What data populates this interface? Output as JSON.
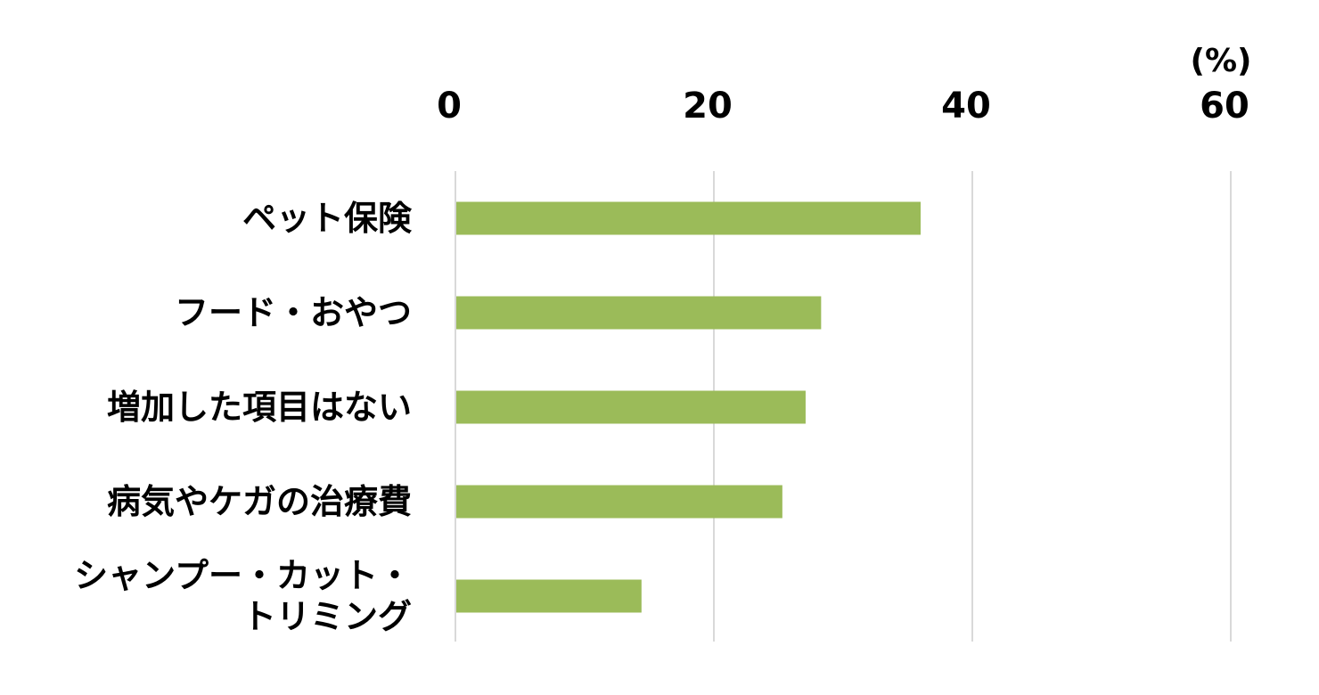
{
  "chart_data": {
    "type": "bar",
    "orientation": "horizontal",
    "unit_label": "(%)",
    "xlim": [
      0,
      60
    ],
    "ticks": [
      "0",
      "20",
      "40",
      "60"
    ],
    "tick_values": [
      0,
      20,
      40,
      60
    ],
    "categories": [
      "ペット保険",
      "フード・おやつ",
      "増加した項目はない",
      "病気やケガの治療費",
      "シャンプー・カット・トリミング"
    ],
    "category_lines": [
      [
        "ペット保険"
      ],
      [
        "フード・おやつ"
      ],
      [
        "増加した項目はない"
      ],
      [
        "病気やケガの治療費"
      ],
      [
        "シャンプー・カット・",
        "トリミング"
      ]
    ],
    "values": [
      36.0,
      28.3,
      27.1,
      25.3,
      14.4
    ],
    "bar_color": "#9bbb59",
    "grid": true,
    "grid_color": "#d9d9d9",
    "axis_position": "top"
  }
}
